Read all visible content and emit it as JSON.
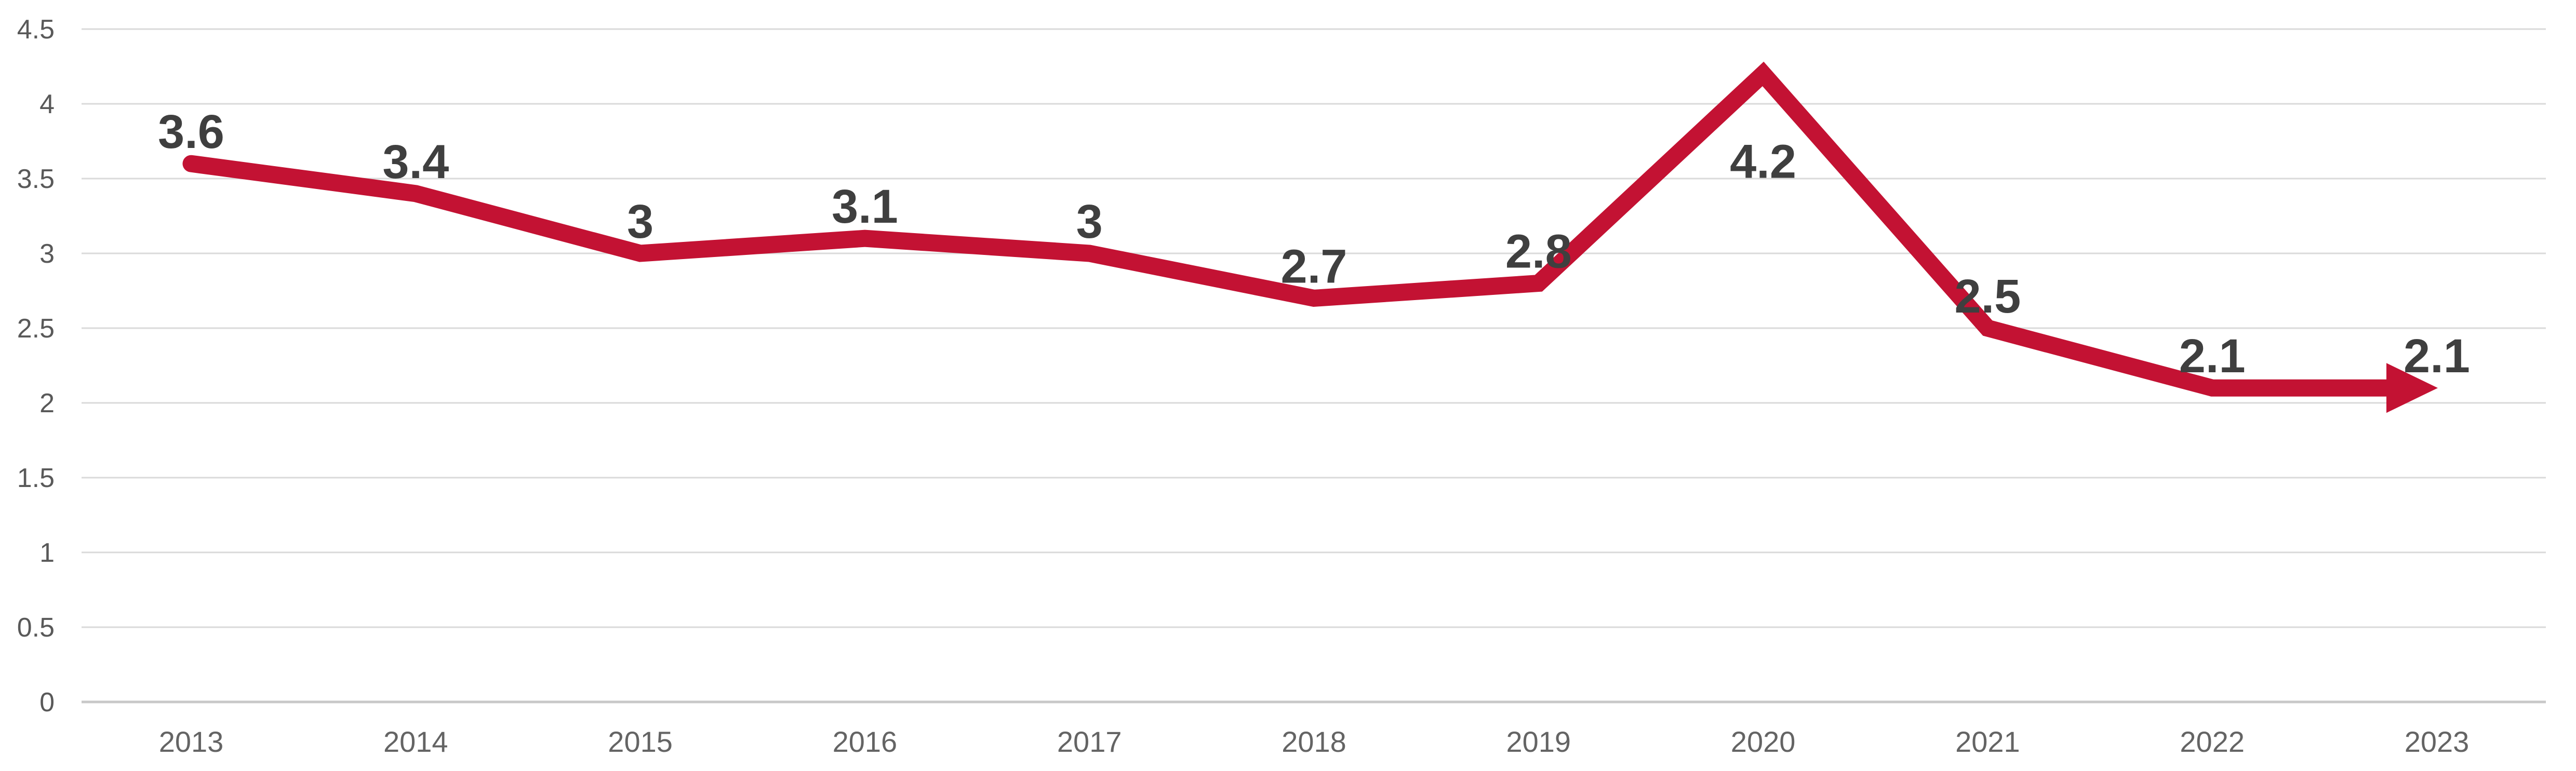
{
  "chart_data": {
    "type": "line",
    "title": "",
    "xlabel": "",
    "ylabel": "",
    "categories": [
      "2013",
      "2014",
      "2015",
      "2016",
      "2017",
      "2018",
      "2019",
      "2020",
      "2021",
      "2022",
      "2023"
    ],
    "series": [
      {
        "name": "value",
        "values": [
          3.6,
          3.4,
          3,
          3.1,
          3,
          2.7,
          2.8,
          4.2,
          2.5,
          2.1,
          2.1
        ],
        "data_labels": [
          "3.6",
          "3.4",
          "3",
          "3.1",
          "3",
          "2.7",
          "2.8",
          "4.2",
          "2.5",
          "2.1",
          "2.1"
        ]
      }
    ],
    "y_ticks": [
      "4.5",
      "4",
      "3.5",
      "3",
      "2.5",
      "2",
      "1.5",
      "1",
      "0.5",
      "0"
    ],
    "y_tick_values": [
      4.5,
      4,
      3.5,
      3,
      2.5,
      2,
      1.5,
      1,
      0.5,
      0
    ],
    "ylim": [
      0,
      4.5
    ],
    "grid": "horizontal",
    "legend": "none",
    "end_marker": "arrow-right",
    "label_below_point_index": 7,
    "colors": {
      "line": "#C31233",
      "arrow": "#C31233",
      "data_label": "#3F3F3F",
      "y_tick_label": "#595959",
      "x_axis_label": "#646464",
      "gridline": "#DADADA",
      "baseline": "#C8C8C8",
      "background": "#FFFFFF"
    }
  }
}
